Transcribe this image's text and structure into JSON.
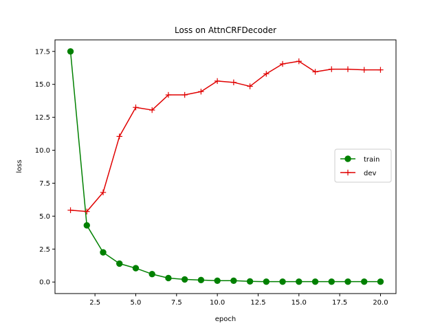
{
  "chart_data": {
    "type": "line",
    "title": "Loss on AttnCRFDecoder",
    "xlabel": "epoch",
    "ylabel": "loss",
    "xlim": [
      0.05,
      20.95
    ],
    "ylim": [
      -0.875,
      18.375
    ],
    "xticks": [
      2.5,
      5.0,
      7.5,
      10.0,
      12.5,
      15.0,
      17.5,
      20.0
    ],
    "xtick_labels": [
      "2.5",
      "5.0",
      "7.5",
      "10.0",
      "12.5",
      "15.0",
      "17.5",
      "20.0"
    ],
    "yticks": [
      0.0,
      2.5,
      5.0,
      7.5,
      10.0,
      12.5,
      15.0,
      17.5
    ],
    "ytick_labels": [
      "0.0",
      "2.5",
      "5.0",
      "7.5",
      "10.0",
      "12.5",
      "15.0",
      "17.5"
    ],
    "grid": false,
    "legend_position": "center-right",
    "x": [
      1,
      2,
      3,
      4,
      5,
      6,
      7,
      8,
      9,
      10,
      11,
      12,
      13,
      14,
      15,
      16,
      17,
      18,
      19,
      20
    ],
    "series": [
      {
        "name": "train",
        "color": "#008000",
        "marker": "circle",
        "values": [
          17.5,
          4.3,
          2.25,
          1.4,
          1.05,
          0.6,
          0.3,
          0.2,
          0.15,
          0.1,
          0.1,
          0.05,
          0.03,
          0.03,
          0.03,
          0.03,
          0.03,
          0.03,
          0.03,
          0.03
        ]
      },
      {
        "name": "dev",
        "color": "#e00000",
        "marker": "plus",
        "values": [
          5.45,
          5.35,
          6.8,
          11.05,
          13.25,
          13.05,
          14.2,
          14.2,
          14.45,
          15.25,
          15.15,
          14.85,
          15.8,
          16.55,
          16.75,
          15.95,
          16.15,
          16.15,
          16.1,
          16.1
        ]
      }
    ]
  }
}
